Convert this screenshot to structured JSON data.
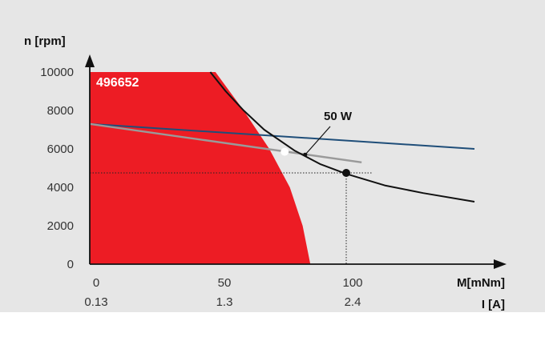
{
  "chart_data": {
    "type": "line",
    "ylabel": "n [rpm]",
    "xlabel": "M[mNm]",
    "xlabel2": "I [A]",
    "xlim": [
      0,
      160
    ],
    "ylim": [
      0,
      10000
    ],
    "y_ticks": [
      0,
      2000,
      4000,
      6000,
      8000,
      10000
    ],
    "y_tick_labels": [
      "0",
      "2000",
      "4000",
      "6000",
      "8000",
      "10000"
    ],
    "x_ticks": [
      0,
      50,
      100
    ],
    "x_tick_labels": [
      "0",
      "50",
      "100"
    ],
    "x2_tick_labels": [
      "0.13",
      "1.3",
      "2.4"
    ],
    "colors": {
      "background": "#e6e6e6",
      "region": "#ed1c24",
      "blue_line": "#1f4e79",
      "gray_line": "#9a9a9a",
      "black_line": "#111111"
    },
    "region": {
      "label": "496652",
      "boundary": [
        [
          0,
          10000
        ],
        [
          49,
          10000
        ],
        [
          60,
          8000
        ],
        [
          70,
          6000
        ],
        [
          78,
          4000
        ],
        [
          83,
          2000
        ],
        [
          86,
          0
        ]
      ]
    },
    "series": [
      {
        "line": "blue",
        "points": [
          [
            0,
            7300
          ],
          [
            150,
            6000
          ]
        ]
      },
      {
        "line": "gray",
        "points": [
          [
            0,
            7300
          ],
          [
            106,
            5300
          ]
        ]
      },
      {
        "line": "black",
        "points": [
          [
            47,
            10000
          ],
          [
            53,
            9000
          ],
          [
            60,
            8000
          ],
          [
            68,
            7000
          ],
          [
            80,
            5900
          ],
          [
            90,
            5200
          ],
          [
            100,
            4700
          ],
          [
            115,
            4100
          ],
          [
            130,
            3700
          ],
          [
            150,
            3250
          ]
        ]
      }
    ],
    "guides": {
      "y": 4750,
      "x_end": 110,
      "x": 100
    },
    "markers": [
      {
        "x": 100,
        "y": 4750,
        "kind": "black"
      },
      {
        "x": 76,
        "y": 5850,
        "kind": "white"
      },
      {
        "x": 84,
        "y": 5700,
        "kind": "small"
      }
    ],
    "annotation": {
      "text": "50 W",
      "x": 95,
      "y": 7300,
      "pointer_to": [
        84,
        5700
      ]
    }
  }
}
